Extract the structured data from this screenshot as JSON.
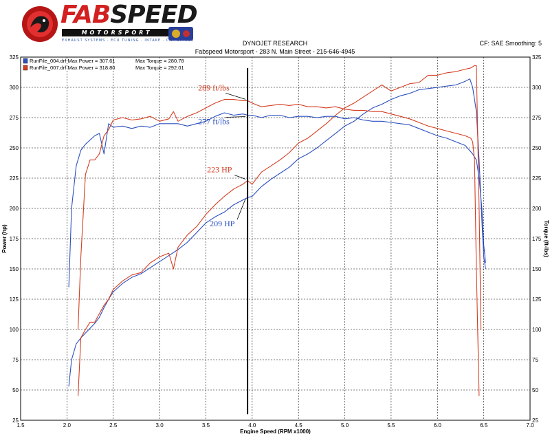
{
  "header": {
    "brand_top_1": "FAB",
    "brand_top_2": "SPEED",
    "brand_sub": "MOTORSPORT",
    "brand_tagline": "EXHAUST SYSTEMS · ECU TUNING · INTAKE · CAT BYPASS",
    "company": "DYNOJET RESEARCH",
    "address": "Fabspeed Motorsport - 283 N. Main Street - 215-646-4945",
    "settings": "CF: SAE  Smoothing: 5"
  },
  "colors": {
    "series_blue": "#2a4fc0",
    "series_red": "#d43d20",
    "grid": "#000000",
    "marker": "#000000"
  },
  "chart_data": {
    "type": "line",
    "xlabel": "Engine Speed (RPM x1000)",
    "ylabel": "Power (hp)",
    "ylabel_right": "Torque (ft-lbs)",
    "xlim": [
      1.5,
      7.0
    ],
    "ylim": [
      25,
      325
    ],
    "x_ticks": [
      "1.5",
      "2.0",
      "2.5",
      "3.0",
      "3.5",
      "4.0",
      "4.5",
      "5.0",
      "5.5",
      "6.0",
      "6.5",
      "7.0"
    ],
    "y_ticks": [
      "25",
      "50",
      "75",
      "100",
      "125",
      "150",
      "175",
      "200",
      "225",
      "250",
      "275",
      "300",
      "325"
    ],
    "grid": true,
    "legend_position": "top-left",
    "legend": [
      {
        "label": "RunFile_004.drf Max Power = 307.61",
        "torque": "Max Torque = 280.78",
        "color": "#2a4fc0"
      },
      {
        "label": "RunFile_007.drf Max Power = 318.80",
        "torque": "Max Torque = 292.01",
        "color": "#d43d20"
      }
    ],
    "marker_rpm": 3.95,
    "series": [
      {
        "name": "RunFile_004.drf",
        "measure": "power",
        "color": "#2a4fc0",
        "x": [
          2.02,
          2.05,
          2.1,
          2.15,
          2.2,
          2.3,
          2.35,
          2.4,
          2.45,
          2.5,
          2.6,
          2.7,
          2.8,
          2.9,
          3.0,
          3.1,
          3.2,
          3.3,
          3.4,
          3.5,
          3.6,
          3.7,
          3.8,
          3.9,
          3.95,
          4.0,
          4.1,
          4.2,
          4.3,
          4.4,
          4.5,
          4.6,
          4.7,
          4.8,
          4.9,
          5.0,
          5.1,
          5.2,
          5.3,
          5.4,
          5.5,
          5.6,
          5.7,
          5.8,
          5.9,
          6.0,
          6.1,
          6.2,
          6.3,
          6.35,
          6.38,
          6.42,
          6.45,
          6.48,
          6.5,
          6.52
        ],
        "y": [
          53,
          75,
          88,
          93,
          97,
          105,
          110,
          118,
          125,
          131,
          138,
          143,
          146,
          151,
          156,
          161,
          166,
          172,
          180,
          188,
          193,
          197,
          203,
          207,
          209,
          210,
          218,
          224,
          229,
          234,
          241,
          245,
          250,
          256,
          262,
          268,
          272,
          278,
          283,
          286,
          290,
          293,
          295,
          298,
          299,
          300,
          301,
          302,
          305,
          307,
          300,
          280,
          240,
          190,
          160,
          150
        ]
      },
      {
        "name": "RunFile_007.drf",
        "measure": "power",
        "color": "#d43d20",
        "x": [
          2.12,
          2.15,
          2.2,
          2.25,
          2.3,
          2.35,
          2.4,
          2.45,
          2.5,
          2.6,
          2.7,
          2.8,
          2.9,
          3.0,
          3.1,
          3.15,
          3.2,
          3.3,
          3.4,
          3.5,
          3.6,
          3.7,
          3.8,
          3.9,
          3.95,
          4.0,
          4.1,
          4.2,
          4.3,
          4.4,
          4.5,
          4.6,
          4.7,
          4.8,
          4.9,
          5.0,
          5.1,
          5.2,
          5.3,
          5.4,
          5.5,
          5.6,
          5.7,
          5.8,
          5.9,
          6.0,
          6.1,
          6.2,
          6.3,
          6.36,
          6.38,
          6.4,
          6.42,
          6.45,
          6.47
        ],
        "y": [
          45,
          93,
          100,
          106,
          106,
          113,
          120,
          125,
          133,
          140,
          145,
          147,
          155,
          160,
          163,
          150,
          168,
          178,
          185,
          195,
          203,
          210,
          216,
          220,
          223,
          220,
          230,
          235,
          240,
          246,
          254,
          258,
          264,
          270,
          277,
          283,
          287,
          292,
          297,
          302,
          297,
          300,
          303,
          304,
          310,
          310,
          312,
          313,
          315,
          316,
          317,
          318,
          318,
          200,
          100
        ]
      },
      {
        "name": "RunFile_004.drf",
        "measure": "torque",
        "color": "#2a4fc0",
        "x": [
          2.02,
          2.05,
          2.1,
          2.15,
          2.2,
          2.3,
          2.35,
          2.4,
          2.45,
          2.5,
          2.6,
          2.7,
          2.8,
          2.9,
          3.0,
          3.1,
          3.2,
          3.3,
          3.4,
          3.5,
          3.6,
          3.7,
          3.8,
          3.9,
          3.95,
          4.0,
          4.1,
          4.2,
          4.3,
          4.4,
          4.5,
          4.6,
          4.7,
          4.8,
          4.9,
          5.0,
          5.1,
          5.2,
          5.3,
          5.4,
          5.5,
          5.6,
          5.7,
          5.8,
          5.9,
          6.0,
          6.1,
          6.2,
          6.3,
          6.38,
          6.42,
          6.45,
          6.48,
          6.5,
          6.52
        ],
        "y": [
          135,
          200,
          235,
          248,
          253,
          260,
          262,
          245,
          270,
          267,
          268,
          266,
          268,
          267,
          270,
          270,
          270,
          268,
          270,
          272,
          276,
          279,
          277,
          278,
          277,
          277,
          275,
          277,
          277,
          275,
          276,
          276,
          275,
          276,
          276,
          274,
          275,
          273,
          272,
          272,
          271,
          270,
          269,
          266,
          263,
          260,
          258,
          255,
          252,
          245,
          240,
          225,
          200,
          170,
          155
        ]
      },
      {
        "name": "RunFile_007.drf",
        "measure": "torque",
        "color": "#d43d20",
        "x": [
          2.12,
          2.15,
          2.2,
          2.25,
          2.3,
          2.35,
          2.4,
          2.45,
          2.5,
          2.6,
          2.7,
          2.8,
          2.9,
          3.0,
          3.1,
          3.15,
          3.2,
          3.3,
          3.4,
          3.5,
          3.6,
          3.7,
          3.8,
          3.9,
          3.95,
          4.0,
          4.1,
          4.2,
          4.3,
          4.4,
          4.5,
          4.6,
          4.7,
          4.8,
          4.9,
          5.0,
          5.1,
          5.2,
          5.3,
          5.4,
          5.5,
          5.6,
          5.7,
          5.8,
          5.9,
          6.0,
          6.1,
          6.2,
          6.3,
          6.36,
          6.38,
          6.4,
          6.42,
          6.45
        ],
        "y": [
          100,
          160,
          228,
          240,
          240,
          245,
          260,
          265,
          273,
          275,
          273,
          274,
          276,
          272,
          274,
          280,
          272,
          276,
          279,
          283,
          287,
          290,
          290,
          289,
          289,
          287,
          284,
          285,
          286,
          285,
          286,
          284,
          284,
          283,
          284,
          282,
          281,
          281,
          280,
          280,
          278,
          276,
          274,
          271,
          268,
          266,
          264,
          262,
          260,
          258,
          255,
          240,
          150,
          45
        ]
      }
    ],
    "annotations": [
      {
        "text": "289 ft/lbs",
        "x": 3.95,
        "y": 289,
        "color": "#d43d20"
      },
      {
        "text": "277 ft/lbs",
        "x": 3.95,
        "y": 277,
        "color": "#2a4fc0"
      },
      {
        "text": "223 HP",
        "x": 3.95,
        "y": 223,
        "color": "#d43d20"
      },
      {
        "text": "209 HP",
        "x": 3.95,
        "y": 209,
        "color": "#2a4fc0"
      }
    ]
  }
}
